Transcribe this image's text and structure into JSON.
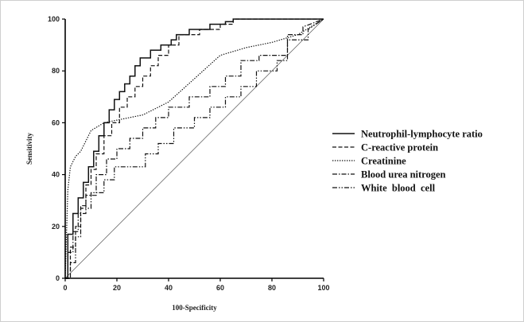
{
  "chart_data": {
    "type": "line",
    "title": "",
    "xlabel": "100-Specificity",
    "ylabel": "Sensitivity",
    "xlim": [
      0,
      100
    ],
    "ylim": [
      0,
      100
    ],
    "xticks": [
      0,
      20,
      40,
      60,
      80,
      100
    ],
    "yticks": [
      0,
      20,
      40,
      60,
      80,
      100
    ],
    "grid": false,
    "legend_position": "right",
    "reference_line": [
      [
        0,
        0
      ],
      [
        100,
        100
      ]
    ],
    "series": [
      {
        "name": "Neutrophil-lymphocyte ratio",
        "dash": "solid",
        "x": [
          0,
          1,
          1,
          3,
          3,
          5,
          5,
          7,
          7,
          9,
          9,
          11,
          11,
          13,
          13,
          15,
          15,
          17,
          17,
          19,
          19,
          21,
          21,
          23,
          23,
          25,
          25,
          27,
          27,
          29,
          29,
          33,
          33,
          37,
          37,
          41,
          41,
          43,
          43,
          48,
          48,
          56,
          56,
          62,
          62,
          65,
          65,
          70,
          70,
          100
        ],
        "y": [
          0,
          0,
          17,
          17,
          25,
          25,
          31,
          31,
          37,
          37,
          43,
          43,
          49,
          49,
          55,
          55,
          60,
          60,
          65,
          65,
          69,
          69,
          72,
          72,
          75,
          75,
          78,
          78,
          82,
          82,
          85,
          85,
          88,
          88,
          90,
          90,
          92,
          92,
          94,
          94,
          96,
          96,
          98,
          98,
          99,
          99,
          100,
          100,
          100,
          100
        ]
      },
      {
        "name": "C-reactive protein",
        "dash": "dashed",
        "x": [
          0,
          2,
          2,
          4,
          4,
          6,
          6,
          8,
          8,
          10,
          10,
          12,
          12,
          15,
          15,
          18,
          18,
          21,
          21,
          24,
          24,
          27,
          27,
          30,
          30,
          33,
          33,
          36,
          36,
          40,
          40,
          44,
          44,
          52,
          52,
          60,
          60,
          65,
          65,
          70,
          70,
          100
        ],
        "y": [
          0,
          0,
          12,
          12,
          20,
          20,
          28,
          28,
          36,
          36,
          42,
          42,
          48,
          48,
          55,
          55,
          60,
          60,
          66,
          66,
          70,
          70,
          74,
          74,
          78,
          78,
          82,
          82,
          86,
          86,
          90,
          90,
          94,
          94,
          96,
          96,
          98,
          98,
          100,
          100,
          100,
          100
        ]
      },
      {
        "name": "Creatinine",
        "dash": "dotted",
        "x": [
          0,
          1,
          2,
          4,
          6,
          10,
          15,
          20,
          30,
          40,
          50,
          60,
          70,
          80,
          90,
          100
        ],
        "y": [
          0,
          34,
          43,
          47,
          49,
          57,
          60,
          61,
          63,
          68,
          77,
          86,
          89,
          91,
          94,
          100
        ]
      },
      {
        "name": "Blood urea nitrogen",
        "dash": "dash-dot",
        "x": [
          0,
          1,
          1,
          3,
          3,
          5,
          5,
          8,
          8,
          12,
          12,
          16,
          16,
          20,
          20,
          25,
          25,
          30,
          30,
          35,
          35,
          40,
          40,
          48,
          48,
          56,
          56,
          62,
          62,
          68,
          68,
          75,
          75,
          86,
          86,
          92,
          92,
          100
        ],
        "y": [
          0,
          0,
          10,
          10,
          18,
          18,
          25,
          25,
          32,
          32,
          40,
          40,
          46,
          46,
          50,
          50,
          54,
          54,
          58,
          58,
          62,
          62,
          66,
          66,
          70,
          70,
          74,
          74,
          78,
          78,
          84,
          84,
          86,
          86,
          94,
          94,
          97,
          100
        ]
      },
      {
        "name": "White  blood  cell",
        "dash": "dash-dot-dot",
        "x": [
          0,
          2,
          2,
          4,
          4,
          6,
          6,
          10,
          10,
          15,
          15,
          19,
          19,
          31,
          31,
          36,
          36,
          42,
          42,
          50,
          50,
          56,
          56,
          62,
          62,
          68,
          68,
          74,
          74,
          82,
          82,
          86,
          86,
          94,
          94,
          100
        ],
        "y": [
          0,
          0,
          6,
          6,
          16,
          16,
          27,
          27,
          33,
          33,
          38,
          38,
          43,
          43,
          48,
          48,
          52,
          52,
          58,
          58,
          62,
          62,
          66,
          66,
          70,
          70,
          74,
          74,
          80,
          80,
          84,
          84,
          92,
          92,
          96,
          100
        ]
      }
    ]
  }
}
